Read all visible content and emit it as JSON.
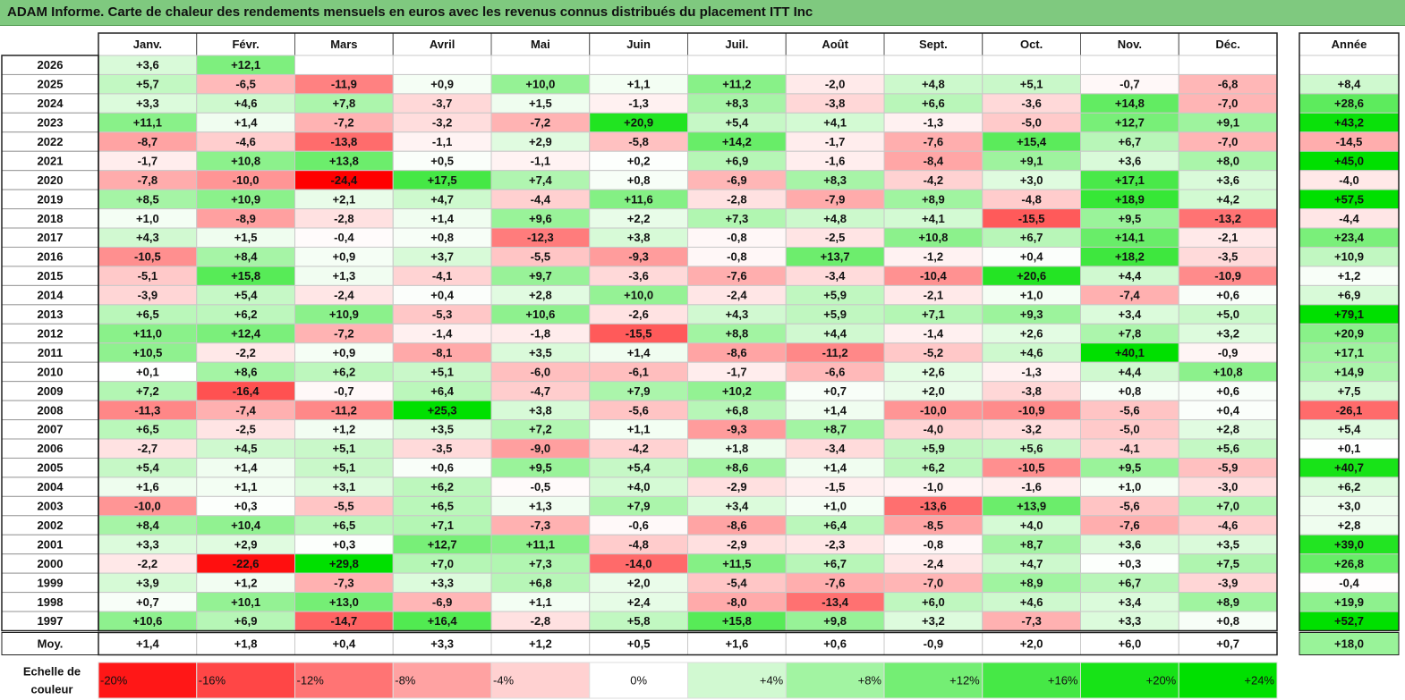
{
  "title": "ADAM Informe. Carte de chaleur des rendements mensuels en euros avec les revenus connus distribués du placement ITT Inc",
  "colors": {
    "title_bg": "#7fc97f",
    "neg_max": "#ff0000",
    "pos_max": "#00e000",
    "zero": "#ffffff"
  },
  "chart_data": {
    "type": "heatmap",
    "months": [
      "Janv.",
      "Févr.",
      "Mars",
      "Avril",
      "Mai",
      "Juin",
      "Juil.",
      "Août",
      "Sept.",
      "Oct.",
      "Nov.",
      "Déc."
    ],
    "year_header": "Année",
    "rows": [
      {
        "year": "2026",
        "values": [
          "+3,6",
          "+12,1",
          null,
          null,
          null,
          null,
          null,
          null,
          null,
          null,
          null,
          null
        ],
        "annual": null
      },
      {
        "year": "2025",
        "values": [
          "+5,7",
          "-6,5",
          "-11,9",
          "+0,9",
          "+10,0",
          "+1,1",
          "+11,2",
          "-2,0",
          "+4,8",
          "+5,1",
          "-0,7",
          "-6,8"
        ],
        "annual": "+8,4"
      },
      {
        "year": "2024",
        "values": [
          "+3,3",
          "+4,6",
          "+7,8",
          "-3,7",
          "+1,5",
          "-1,3",
          "+8,3",
          "-3,8",
          "+6,6",
          "-3,6",
          "+14,8",
          "-7,0"
        ],
        "annual": "+28,6"
      },
      {
        "year": "2023",
        "values": [
          "+11,1",
          "+1,4",
          "-7,2",
          "-3,2",
          "-7,2",
          "+20,9",
          "+5,4",
          "+4,1",
          "-1,3",
          "-5,0",
          "+12,7",
          "+9,1"
        ],
        "annual": "+43,2"
      },
      {
        "year": "2022",
        "values": [
          "-8,7",
          "-4,6",
          "-13,8",
          "-1,1",
          "+2,9",
          "-5,8",
          "+14,2",
          "-1,7",
          "-7,6",
          "+15,4",
          "+6,7",
          "-7,0"
        ],
        "annual": "-14,5"
      },
      {
        "year": "2021",
        "values": [
          "-1,7",
          "+10,8",
          "+13,8",
          "+0,5",
          "-1,1",
          "+0,2",
          "+6,9",
          "-1,6",
          "-8,4",
          "+9,1",
          "+3,6",
          "+8,0"
        ],
        "annual": "+45,0"
      },
      {
        "year": "2020",
        "values": [
          "-7,8",
          "-10,0",
          "-24,4",
          "+17,5",
          "+7,4",
          "+0,8",
          "-6,9",
          "+8,3",
          "-4,2",
          "+3,0",
          "+17,1",
          "+3,6"
        ],
        "annual": "-4,0"
      },
      {
        "year": "2019",
        "values": [
          "+8,5",
          "+10,9",
          "+2,1",
          "+4,7",
          "-4,4",
          "+11,6",
          "-2,8",
          "-7,9",
          "+8,9",
          "-4,8",
          "+18,9",
          "+4,2"
        ],
        "annual": "+57,5"
      },
      {
        "year": "2018",
        "values": [
          "+1,0",
          "-8,9",
          "-2,8",
          "+1,4",
          "+9,6",
          "+2,2",
          "+7,3",
          "+4,8",
          "+4,1",
          "-15,5",
          "+9,5",
          "-13,2"
        ],
        "annual": "-4,4"
      },
      {
        "year": "2017",
        "values": [
          "+4,3",
          "+1,5",
          "-0,4",
          "+0,8",
          "-12,3",
          "+3,8",
          "-0,8",
          "-2,5",
          "+10,8",
          "+6,7",
          "+14,1",
          "-2,1"
        ],
        "annual": "+23,4"
      },
      {
        "year": "2016",
        "values": [
          "-10,5",
          "+8,4",
          "+0,9",
          "+3,7",
          "-5,5",
          "-9,3",
          "-0,8",
          "+13,7",
          "-1,2",
          "+0,4",
          "+18,2",
          "-3,5"
        ],
        "annual": "+10,9"
      },
      {
        "year": "2015",
        "values": [
          "-5,1",
          "+15,8",
          "+1,3",
          "-4,1",
          "+9,7",
          "-3,6",
          "-7,6",
          "-3,4",
          "-10,4",
          "+20,6",
          "+4,4",
          "-10,9"
        ],
        "annual": "+1,2"
      },
      {
        "year": "2014",
        "values": [
          "-3,9",
          "+5,4",
          "-2,4",
          "+0,4",
          "+2,8",
          "+10,0",
          "-2,4",
          "+5,9",
          "-2,1",
          "+1,0",
          "-7,4",
          "+0,6"
        ],
        "annual": "+6,9"
      },
      {
        "year": "2013",
        "values": [
          "+6,5",
          "+6,2",
          "+10,9",
          "-5,3",
          "+10,6",
          "-2,6",
          "+4,3",
          "+5,9",
          "+7,1",
          "+9,3",
          "+3,4",
          "+5,0"
        ],
        "annual": "+79,1"
      },
      {
        "year": "2012",
        "values": [
          "+11,0",
          "+12,4",
          "-7,2",
          "-1,4",
          "-1,8",
          "-15,5",
          "+8,8",
          "+4,4",
          "-1,4",
          "+2,6",
          "+7,8",
          "+3,2"
        ],
        "annual": "+20,9"
      },
      {
        "year": "2011",
        "values": [
          "+10,5",
          "-2,2",
          "+0,9",
          "-8,1",
          "+3,5",
          "+1,4",
          "-8,6",
          "-11,2",
          "-5,2",
          "+4,6",
          "+40,1",
          "-0,9"
        ],
        "annual": "+17,1"
      },
      {
        "year": "2010",
        "values": [
          "+0,1",
          "+8,6",
          "+6,2",
          "+5,1",
          "-6,0",
          "-6,1",
          "-1,7",
          "-6,6",
          "+2,6",
          "-1,3",
          "+4,4",
          "+10,8"
        ],
        "annual": "+14,9"
      },
      {
        "year": "2009",
        "values": [
          "+7,2",
          "-16,4",
          "-0,7",
          "+6,4",
          "-4,7",
          "+7,9",
          "+10,2",
          "+0,7",
          "+2,0",
          "-3,8",
          "+0,8",
          "+0,6"
        ],
        "annual": "+7,5"
      },
      {
        "year": "2008",
        "values": [
          "-11,3",
          "-7,4",
          "-11,2",
          "+25,3",
          "+3,8",
          "-5,6",
          "+6,8",
          "+1,4",
          "-10,0",
          "-10,9",
          "-5,6",
          "+0,4"
        ],
        "annual": "-26,1"
      },
      {
        "year": "2007",
        "values": [
          "+6,5",
          "-2,5",
          "+1,2",
          "+3,5",
          "+7,2",
          "+1,1",
          "-9,3",
          "+8,7",
          "-4,0",
          "-3,2",
          "-5,0",
          "+2,8"
        ],
        "annual": "+5,4"
      },
      {
        "year": "2006",
        "values": [
          "-2,7",
          "+4,5",
          "+5,1",
          "-3,5",
          "-9,0",
          "-4,2",
          "+1,8",
          "-3,4",
          "+5,9",
          "+5,6",
          "-4,1",
          "+5,6"
        ],
        "annual": "+0,1"
      },
      {
        "year": "2005",
        "values": [
          "+5,4",
          "+1,4",
          "+5,1",
          "+0,6",
          "+9,5",
          "+5,4",
          "+8,6",
          "+1,4",
          "+6,2",
          "-10,5",
          "+9,5",
          "-5,9"
        ],
        "annual": "+40,7"
      },
      {
        "year": "2004",
        "values": [
          "+1,6",
          "+1,1",
          "+3,1",
          "+6,2",
          "-0,5",
          "+4,0",
          "-2,9",
          "-1,5",
          "-1,0",
          "-1,6",
          "+1,0",
          "-3,0"
        ],
        "annual": "+6,2"
      },
      {
        "year": "2003",
        "values": [
          "-10,0",
          "+0,3",
          "-5,5",
          "+6,5",
          "+1,3",
          "+7,9",
          "+3,4",
          "+1,0",
          "-13,6",
          "+13,9",
          "-5,6",
          "+7,0"
        ],
        "annual": "+3,0"
      },
      {
        "year": "2002",
        "values": [
          "+8,4",
          "+10,4",
          "+6,5",
          "+7,1",
          "-7,3",
          "-0,6",
          "-8,6",
          "+6,4",
          "-8,5",
          "+4,0",
          "-7,6",
          "-4,6"
        ],
        "annual": "+2,8"
      },
      {
        "year": "2001",
        "values": [
          "+3,3",
          "+2,9",
          "+0,3",
          "+12,7",
          "+11,1",
          "-4,8",
          "-2,9",
          "-2,3",
          "-0,8",
          "+8,7",
          "+3,6",
          "+3,5"
        ],
        "annual": "+39,0"
      },
      {
        "year": "2000",
        "values": [
          "-2,2",
          "-22,6",
          "+29,8",
          "+7,0",
          "+7,3",
          "-14,0",
          "+11,5",
          "+6,7",
          "-2,4",
          "+4,7",
          "+0,3",
          "+7,5"
        ],
        "annual": "+26,8"
      },
      {
        "year": "1999",
        "values": [
          "+3,9",
          "+1,2",
          "-7,3",
          "+3,3",
          "+6,8",
          "+2,0",
          "-5,4",
          "-7,6",
          "-7,0",
          "+8,9",
          "+6,7",
          "-3,9"
        ],
        "annual": "-0,4"
      },
      {
        "year": "1998",
        "values": [
          "+0,7",
          "+10,1",
          "+13,0",
          "-6,9",
          "+1,1",
          "+2,4",
          "-8,0",
          "-13,4",
          "+6,0",
          "+4,6",
          "+3,4",
          "+8,9"
        ],
        "annual": "+19,9"
      },
      {
        "year": "1997",
        "values": [
          "+10,6",
          "+6,9",
          "-14,7",
          "+16,4",
          "-2,8",
          "+5,8",
          "+15,8",
          "+9,8",
          "+3,2",
          "-7,3",
          "+3,3",
          "+0,8"
        ],
        "annual": "+52,7"
      }
    ],
    "average": {
      "label": "Moy.",
      "values": [
        "+1,4",
        "+1,8",
        "+0,4",
        "+3,3",
        "+1,2",
        "+0,5",
        "+1,6",
        "+0,6",
        "-0,9",
        "+2,0",
        "+6,0",
        "+0,7"
      ],
      "annual": "+18,0"
    },
    "scale": {
      "label_line1": "Echelle de",
      "label_line2": "couleur",
      "steps": [
        "-20%",
        "-16%",
        "-12%",
        "-8%",
        "-4%",
        "0%",
        "+4%",
        "+8%",
        "+12%",
        "+16%",
        "+20%",
        "+24%"
      ],
      "step_values": [
        -20,
        -16,
        -12,
        -8,
        -4,
        0,
        4,
        8,
        12,
        16,
        20,
        24
      ]
    }
  }
}
